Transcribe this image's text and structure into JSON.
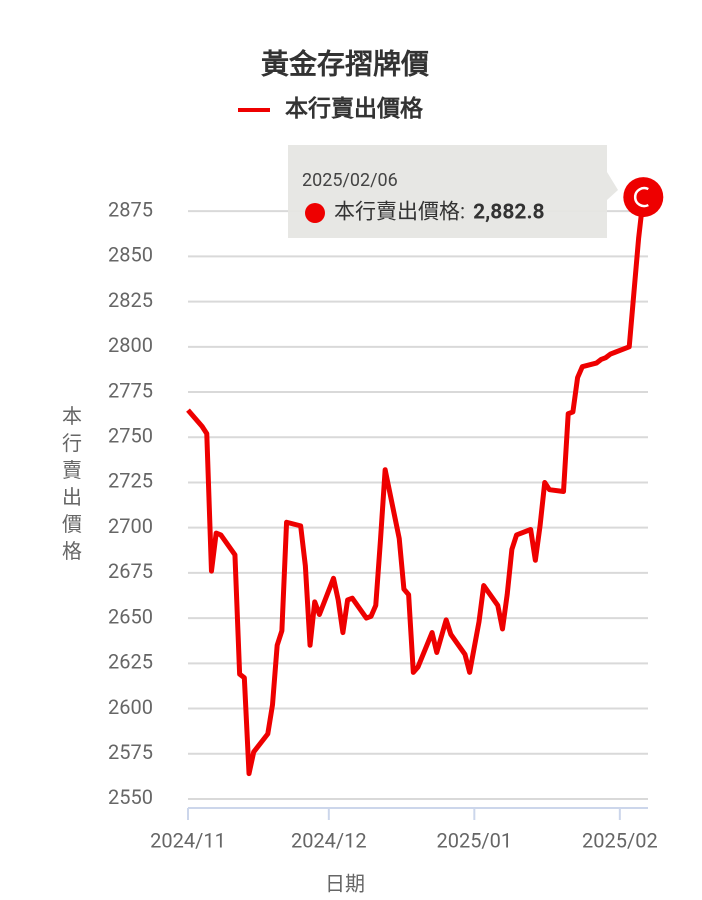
{
  "chart_data": {
    "type": "line",
    "title": "黃金存摺牌價",
    "x_label": "日期",
    "y_label": "本行賣出價格",
    "x": [
      "2024/11/01",
      "2024/11/04",
      "2024/11/05",
      "2024/11/06",
      "2024/11/07",
      "2024/11/08",
      "2024/11/11",
      "2024/11/12",
      "2024/11/13",
      "2024/11/14",
      "2024/11/15",
      "2024/11/18",
      "2024/11/19",
      "2024/11/20",
      "2024/11/21",
      "2024/11/22",
      "2024/11/25",
      "2024/11/26",
      "2024/11/27",
      "2024/11/28",
      "2024/11/29",
      "2024/12/02",
      "2024/12/03",
      "2024/12/04",
      "2024/12/05",
      "2024/12/06",
      "2024/12/09",
      "2024/12/10",
      "2024/12/11",
      "2024/12/12",
      "2024/12/13",
      "2024/12/16",
      "2024/12/17",
      "2024/12/18",
      "2024/12/19",
      "2024/12/20",
      "2024/12/23",
      "2024/12/24",
      "2024/12/26",
      "2024/12/27",
      "2024/12/30",
      "2024/12/31",
      "2025/01/02",
      "2025/01/03",
      "2025/01/06",
      "2025/01/07",
      "2025/01/08",
      "2025/01/09",
      "2025/01/10",
      "2025/01/13",
      "2025/01/14",
      "2025/01/15",
      "2025/01/16",
      "2025/01/17",
      "2025/01/20",
      "2025/01/21",
      "2025/01/22",
      "2025/01/23",
      "2025/01/24",
      "2025/01/27",
      "2025/01/28",
      "2025/01/29",
      "2025/01/30",
      "2025/01/31",
      "2025/02/03",
      "2025/02/04",
      "2025/02/05",
      "2025/02/06"
    ],
    "series": [
      {
        "name": "本行賣出價格",
        "color": "#ee0000",
        "values": [
          2765,
          2756,
          2752,
          2676,
          2697,
          2696,
          2685,
          2619,
          2617,
          2564,
          2576,
          2586,
          2602,
          2635,
          2643,
          2703,
          2701,
          2679,
          2635,
          2659,
          2652,
          2672,
          2660,
          2642,
          2660,
          2661,
          2650,
          2651,
          2657,
          2693,
          2732,
          2694,
          2666,
          2663,
          2620,
          2623,
          2642,
          2631,
          2649,
          2641,
          2630,
          2620,
          2648,
          2668,
          2657,
          2644,
          2663,
          2688,
          2696,
          2699,
          2682,
          2701,
          2725,
          2721,
          2720,
          2763,
          2764,
          2783,
          2789,
          2791,
          2793,
          2794,
          2796,
          2797,
          2800,
          2830,
          2860,
          2882.8
        ]
      }
    ],
    "xlim": [
      "2024/11/01",
      "2025/02/07"
    ],
    "xticks": [
      {
        "value": "2024/11/01",
        "label": "2024/11"
      },
      {
        "value": "2024/12/01",
        "label": "2024/12"
      },
      {
        "value": "2025/01/01",
        "label": "2025/01"
      },
      {
        "value": "2025/02/01",
        "label": "2025/02"
      }
    ],
    "ylim": [
      2545,
      2895
    ],
    "yticks": [
      2550,
      2575,
      2600,
      2625,
      2650,
      2675,
      2700,
      2725,
      2750,
      2775,
      2800,
      2825,
      2850,
      2875
    ],
    "grid": true,
    "tooltip": {
      "x": "2025/02/06",
      "label": "本行賣出價格:",
      "value": "2,882.8"
    }
  }
}
